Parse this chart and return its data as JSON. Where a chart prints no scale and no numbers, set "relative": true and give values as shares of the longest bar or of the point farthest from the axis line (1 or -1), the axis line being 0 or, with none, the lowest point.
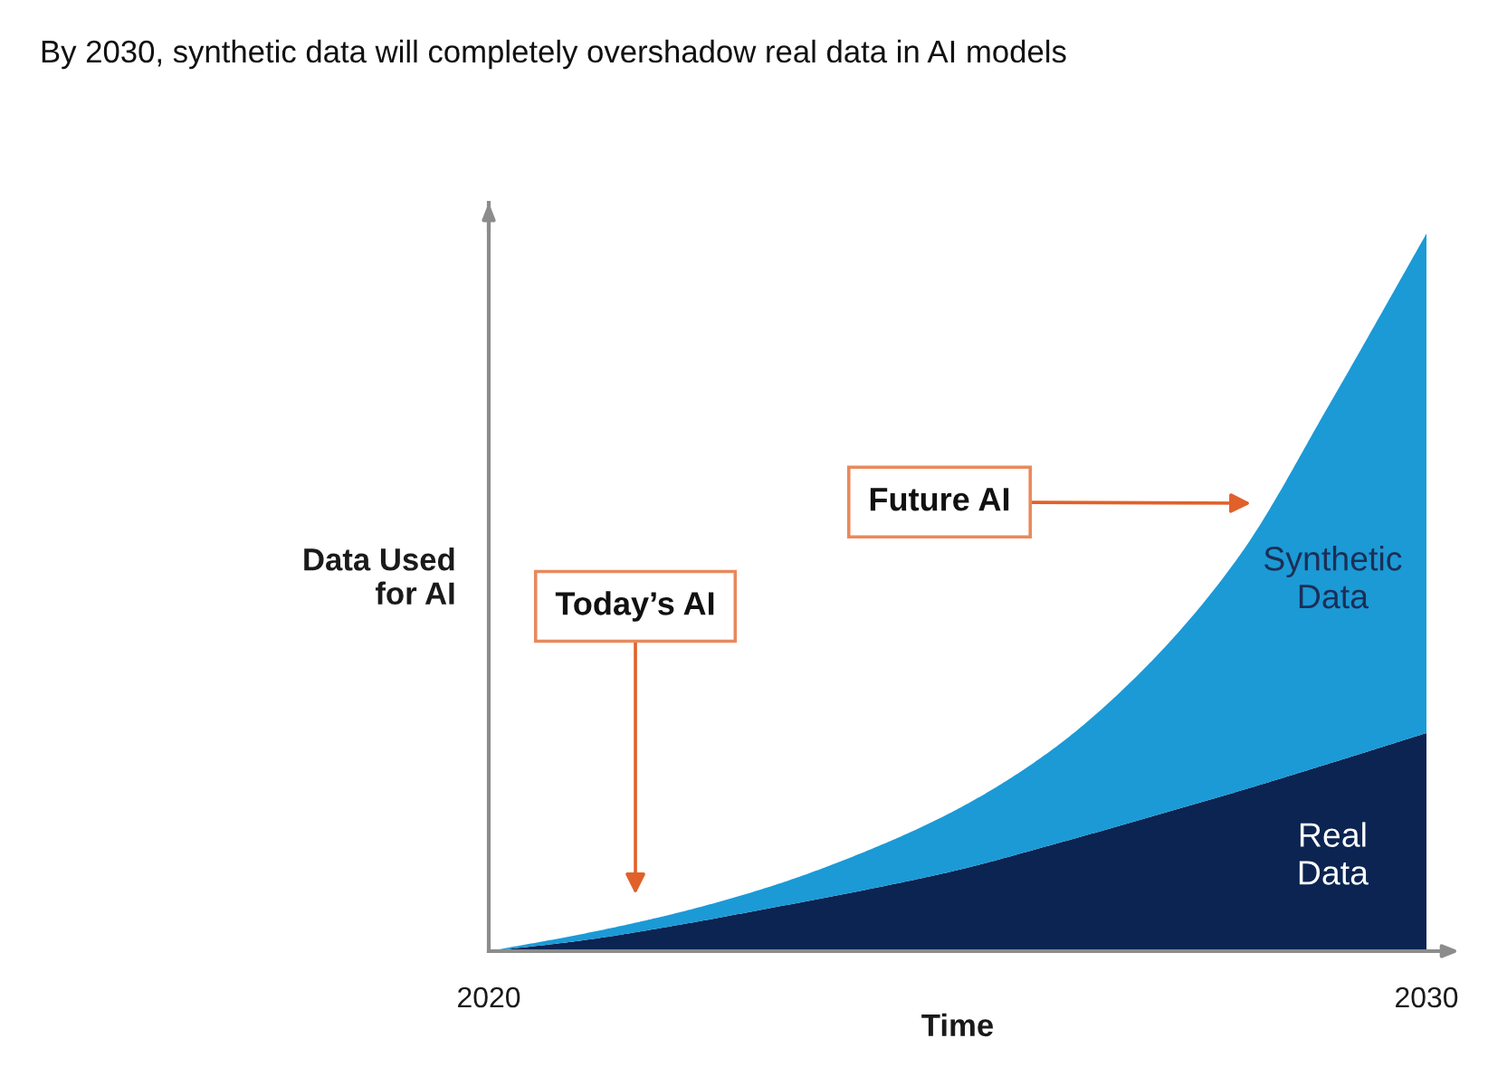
{
  "chart_data": {
    "type": "area",
    "title": "By 2030, synthetic data will completely overshadow real data in AI models",
    "xlabel": "Time",
    "ylabel": "Data Used\nfor AI",
    "relative": true,
    "stacked": true,
    "x": [
      2020,
      2021,
      2022,
      2023,
      2024,
      2025,
      2026,
      2027,
      2028,
      2029,
      2030
    ],
    "xlim": [
      2020,
      2030
    ],
    "xticks": [
      2020,
      2030
    ],
    "series": [
      {
        "name": "Real\nData",
        "color": "#0b2452",
        "values": [
          0,
          0.015,
          0.036,
          0.06,
          0.085,
          0.113,
          0.148,
          0.185,
          0.223,
          0.263,
          0.304
        ]
      },
      {
        "name": "Synthetic\nData",
        "color": "#1b9ad6",
        "values": [
          0,
          0.009,
          0.017,
          0.03,
          0.053,
          0.085,
          0.132,
          0.21,
          0.327,
          0.507,
          0.696
        ]
      }
    ],
    "annotations": [
      "Future AI",
      "Today’s AI"
    ]
  }
}
